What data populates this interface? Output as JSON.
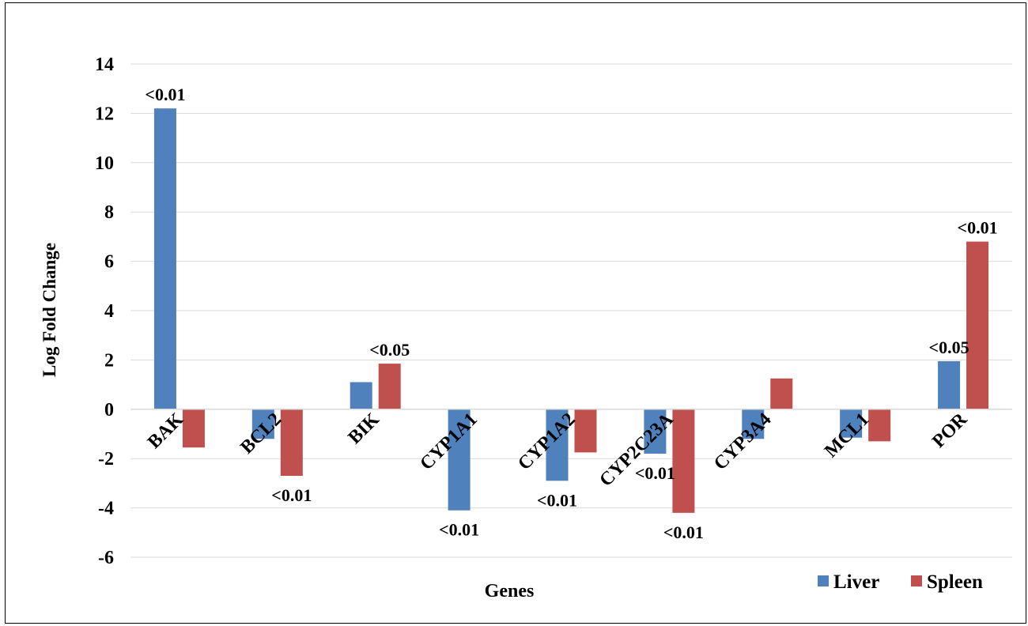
{
  "chart_data": {
    "type": "bar",
    "xlabel": "Genes",
    "ylabel": "Log Fold Change",
    "ylim": [
      -6,
      14
    ],
    "yticks": [
      -6,
      -4,
      -2,
      0,
      2,
      4,
      6,
      8,
      10,
      12,
      14
    ],
    "grid": true,
    "legend_position": "bottom-right",
    "categories": [
      "BAK",
      "BCL2",
      "BIK",
      "CYP1A1",
      "CYP1A2",
      "CYP2C23A",
      "CYP3A4",
      "MCL1",
      "POR"
    ],
    "series": [
      {
        "name": "Liver",
        "color": "#4f81bd",
        "values": [
          12.2,
          -1.2,
          1.1,
          -4.1,
          -2.9,
          -1.8,
          -1.2,
          -1.15,
          1.95
        ],
        "labels": [
          "<0.01",
          "",
          "",
          "<0.01",
          "<0.01",
          "<0.01",
          "",
          "",
          "<0.05"
        ]
      },
      {
        "name": "Spleen",
        "color": "#c0504d",
        "values": [
          -1.55,
          -2.7,
          1.85,
          0,
          -1.75,
          -4.2,
          1.25,
          -1.3,
          6.8
        ],
        "labels": [
          "",
          "<0.01",
          "<0.05",
          "",
          "",
          "<0.01",
          "",
          "",
          "<0.01"
        ]
      }
    ]
  }
}
